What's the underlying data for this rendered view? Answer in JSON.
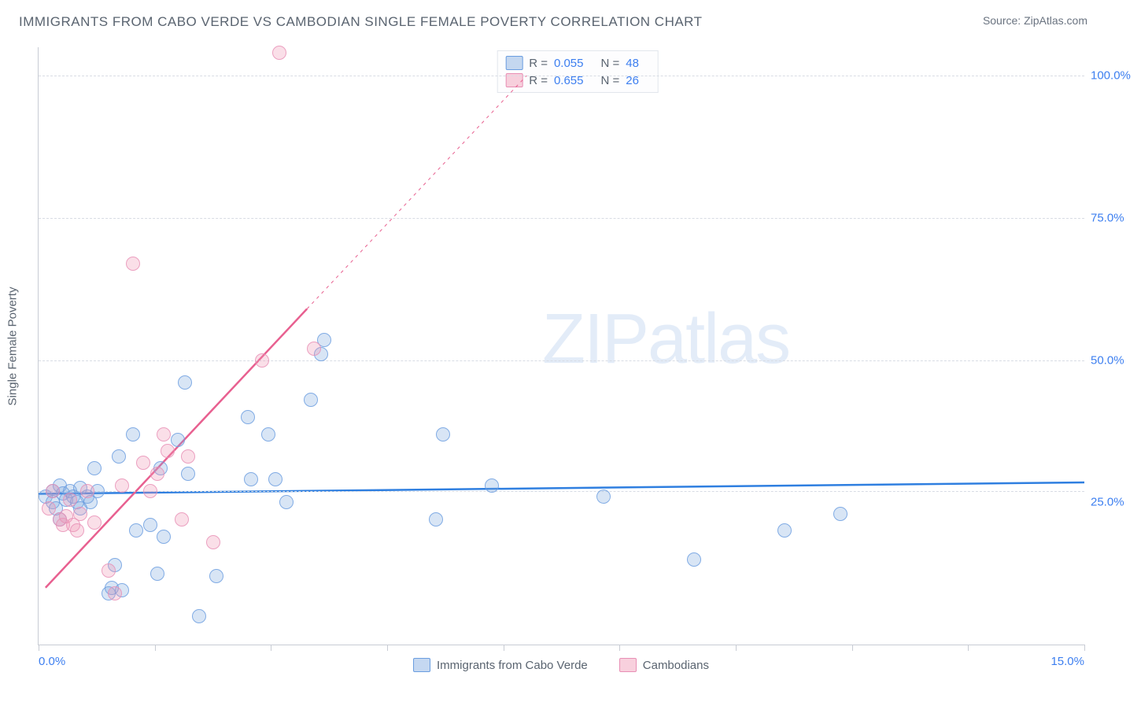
{
  "header": {
    "title": "IMMIGRANTS FROM CABO VERDE VS CAMBODIAN SINGLE FEMALE POVERTY CORRELATION CHART",
    "source_prefix": "Source: ",
    "source_name": "ZipAtlas.com"
  },
  "chart": {
    "type": "scatter",
    "ylabel": "Single Female Poverty",
    "xlim": [
      0,
      15
    ],
    "ylim": [
      0,
      105
    ],
    "x_ticks": [
      0,
      1.667,
      3.333,
      5,
      6.667,
      8.333,
      10,
      11.667,
      13.333,
      15
    ],
    "x_tick_labels": {
      "0": "0.0%",
      "15": "15.0%"
    },
    "y_gridlines": [
      {
        "v": 27,
        "label": ""
      },
      {
        "v": 50,
        "label": "50.0%"
      },
      {
        "v": 75,
        "label": "75.0%"
      },
      {
        "v": 100,
        "label": "100.0%"
      }
    ],
    "y_extra_labels": [
      {
        "v": 25,
        "label": "25.0%"
      }
    ],
    "background_color": "#ffffff",
    "grid_color": "#d8dce4",
    "axis_color": "#c8ccd4",
    "label_color": "#3d7ff0",
    "title_color": "#5a6470",
    "watermark_text": "ZIPatlas",
    "watermark_color": "rgba(126,168,224,0.22)",
    "series": [
      {
        "name": "Immigrants from Cabo Verde",
        "color_fill": "rgba(126,168,224,0.35)",
        "color_stroke": "#6a9de0",
        "trend_color": "#2f7fe0",
        "trend_width": 2.5,
        "R": "0.055",
        "N": "48",
        "trend": {
          "x1": 0,
          "y1": 26.5,
          "x2": 15,
          "y2": 28.5
        },
        "points": [
          [
            0.1,
            26
          ],
          [
            0.2,
            27
          ],
          [
            0.2,
            25
          ],
          [
            0.3,
            28
          ],
          [
            0.25,
            24
          ],
          [
            0.35,
            26.5
          ],
          [
            0.4,
            25.5
          ],
          [
            0.45,
            27
          ],
          [
            0.5,
            26
          ],
          [
            0.55,
            25
          ],
          [
            0.6,
            27.5
          ],
          [
            0.6,
            24
          ],
          [
            0.7,
            26
          ],
          [
            0.75,
            25
          ],
          [
            0.8,
            31
          ],
          [
            0.85,
            27
          ],
          [
            1.0,
            9
          ],
          [
            1.05,
            10
          ],
          [
            1.1,
            14
          ],
          [
            1.15,
            33
          ],
          [
            1.2,
            9.5
          ],
          [
            1.35,
            37
          ],
          [
            1.4,
            20
          ],
          [
            1.6,
            21
          ],
          [
            1.7,
            12.5
          ],
          [
            1.75,
            31
          ],
          [
            1.8,
            19
          ],
          [
            2.0,
            36
          ],
          [
            2.1,
            46
          ],
          [
            2.15,
            30
          ],
          [
            2.3,
            5
          ],
          [
            2.55,
            12
          ],
          [
            3.0,
            40
          ],
          [
            3.05,
            29
          ],
          [
            3.3,
            37
          ],
          [
            3.4,
            29
          ],
          [
            3.55,
            25
          ],
          [
            3.9,
            43
          ],
          [
            4.05,
            51
          ],
          [
            4.1,
            53.5
          ],
          [
            5.7,
            22
          ],
          [
            5.8,
            37
          ],
          [
            6.5,
            28
          ],
          [
            8.1,
            26
          ],
          [
            9.4,
            15
          ],
          [
            10.7,
            20
          ],
          [
            11.5,
            23
          ],
          [
            0.3,
            22
          ]
        ]
      },
      {
        "name": "Cambodians",
        "color_fill": "rgba(240,150,180,0.35)",
        "color_stroke": "#e88fb5",
        "trend_color": "#e86090",
        "trend_width": 2.5,
        "R": "0.655",
        "N": "26",
        "trend": {
          "x1": 0.1,
          "y1": 10,
          "x2": 3.85,
          "y2": 59
        },
        "trend_dashed_ext": {
          "x1": 3.85,
          "y1": 59,
          "x2": 7.0,
          "y2": 100
        },
        "points": [
          [
            0.15,
            24
          ],
          [
            0.2,
            27
          ],
          [
            0.3,
            22
          ],
          [
            0.35,
            21
          ],
          [
            0.4,
            22.5
          ],
          [
            0.45,
            25.5
          ],
          [
            0.5,
            21
          ],
          [
            0.55,
            20
          ],
          [
            0.6,
            23
          ],
          [
            0.7,
            27
          ],
          [
            0.8,
            21.5
          ],
          [
            1.0,
            13
          ],
          [
            1.1,
            9
          ],
          [
            1.35,
            67
          ],
          [
            1.5,
            32
          ],
          [
            1.6,
            27
          ],
          [
            1.7,
            30
          ],
          [
            1.8,
            37
          ],
          [
            1.85,
            34
          ],
          [
            2.05,
            22
          ],
          [
            2.15,
            33
          ],
          [
            2.5,
            18
          ],
          [
            3.2,
            50
          ],
          [
            3.45,
            104
          ],
          [
            3.95,
            52
          ],
          [
            1.2,
            28
          ]
        ]
      }
    ],
    "legend_bottom": [
      {
        "swatch": "blue",
        "label": "Immigrants from Cabo Verde"
      },
      {
        "swatch": "pink",
        "label": "Cambodians"
      }
    ]
  }
}
